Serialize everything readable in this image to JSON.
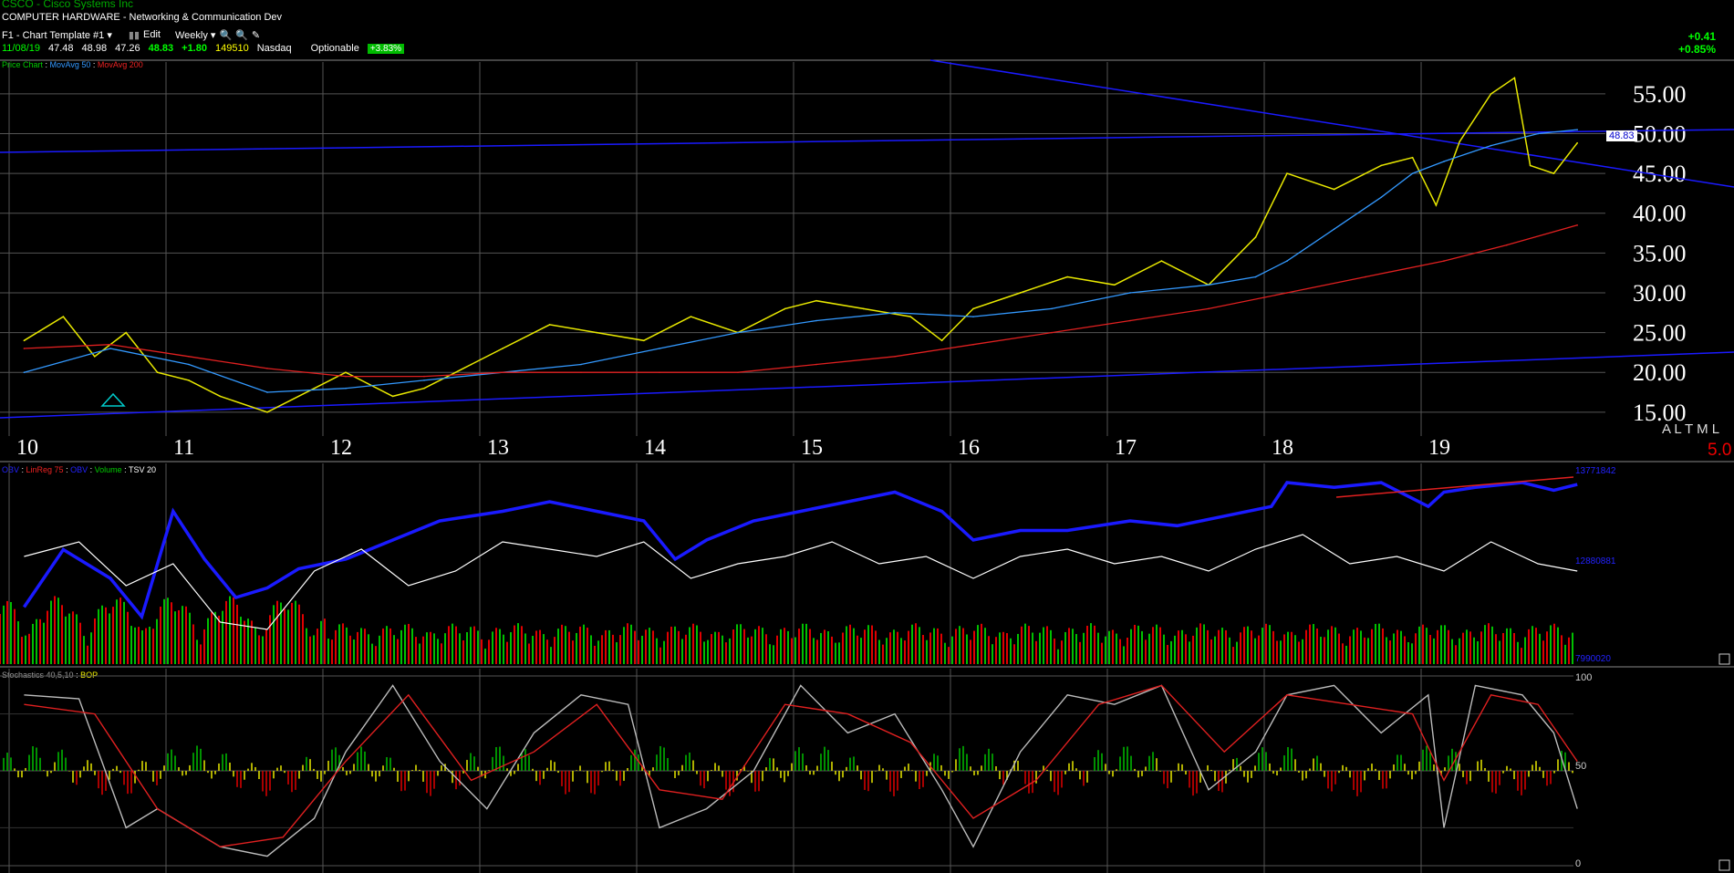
{
  "header": {
    "symbol_line": "CSCO - Cisco Systems Inc",
    "industry": "COMPUTER HARDWARE - Networking & Communication Dev",
    "template": "F1 - Chart Template #1",
    "edit_label": "Edit",
    "period": "Weekly",
    "optionable": "Optionable",
    "change_pct_badge": "+3.83%"
  },
  "quote": {
    "date": "11/08/19",
    "open": "47.48",
    "high": "48.98",
    "low": "47.26",
    "close": "48.83",
    "change": "+1.80",
    "volume": "149510",
    "exchange": "Nasdaq"
  },
  "day_change": {
    "abs": "+0.41",
    "pct": "+0.85%"
  },
  "panel_legends": {
    "price": {
      "label": "Price Chart",
      "ma50": "MovAvg 50",
      "ma200": "MovAvg 200"
    },
    "volume": {
      "obv": "OBV",
      "linreg": "LinReg 75",
      "obv2": "OBV",
      "volume": "Volume",
      "tsv": "TSV 20"
    },
    "stoch": {
      "stoch": "Stochastics 40,5,10",
      "bop": "BOP"
    }
  },
  "side_labels": {
    "al_tml": "A L T M L",
    "scale": "5.0",
    "last_price_tag": "48.83",
    "obv_top": "13771842",
    "obv_mid": "12880881",
    "vol_bottom": "7990020",
    "stoch_100": "100",
    "stoch_50": "50",
    "stoch_0": "0"
  },
  "colors": {
    "price": "#e8e800",
    "price_up": "#00c000",
    "price_down": "#e00000",
    "ma50": "#3399ff",
    "ma200": "#e02020",
    "trendline": "#1a1aff",
    "obv": "#1a1aff",
    "tsv": "#ffffff",
    "grid": "#555555"
  },
  "chart_data": [
    {
      "type": "line",
      "title": "Price Chart",
      "x": [
        "10",
        "11",
        "12",
        "13",
        "14",
        "15",
        "16",
        "17",
        "18",
        "19"
      ],
      "y_ticks": [
        "55.00",
        "50.00",
        "45.00",
        "40.00",
        "35.00",
        "30.00",
        "25.00",
        "20.00",
        "15.00"
      ],
      "ylim": [
        12,
        59
      ],
      "series": [
        {
          "name": "Price",
          "x": [
            2009.95,
            2010.2,
            2010.4,
            2010.6,
            2010.8,
            2011.0,
            2011.2,
            2011.5,
            2011.8,
            2012.0,
            2012.3,
            2012.5,
            2012.8,
            2013.0,
            2013.3,
            2013.6,
            2013.9,
            2014.2,
            2014.5,
            2014.8,
            2015.0,
            2015.3,
            2015.6,
            2015.8,
            2016.0,
            2016.3,
            2016.6,
            2016.9,
            2017.2,
            2017.5,
            2017.8,
            2018.0,
            2018.3,
            2018.6,
            2018.8,
            2018.95,
            2019.1,
            2019.3,
            2019.45,
            2019.55,
            2019.7,
            2019.85
          ],
          "values": [
            24,
            27,
            22,
            25,
            20,
            19,
            17,
            15,
            18,
            20,
            17,
            18,
            21,
            23,
            26,
            25,
            24,
            27,
            25,
            28,
            29,
            28,
            27,
            24,
            28,
            30,
            32,
            31,
            34,
            31,
            37,
            45,
            43,
            46,
            47,
            41,
            49,
            55,
            57,
            46,
            45,
            48.83
          ]
        },
        {
          "name": "MovAvg 50",
          "x": [
            2009.95,
            2010.5,
            2011.0,
            2011.5,
            2012.0,
            2012.5,
            2013.0,
            2013.5,
            2014.0,
            2014.5,
            2015.0,
            2015.5,
            2016.0,
            2016.5,
            2017.0,
            2017.5,
            2017.8,
            2018.0,
            2018.3,
            2018.6,
            2018.8,
            2019.0,
            2019.3,
            2019.6,
            2019.85
          ],
          "values": [
            20,
            23,
            21,
            17.5,
            18,
            19,
            20,
            21,
            23,
            25,
            26.5,
            27.5,
            27,
            28,
            30,
            31,
            32,
            34,
            38,
            42,
            45,
            46.5,
            48.5,
            50,
            50.5
          ]
        },
        {
          "name": "MovAvg 200",
          "x": [
            2009.95,
            2010.5,
            2011.0,
            2011.5,
            2012.0,
            2012.5,
            2013.0,
            2013.5,
            2014.0,
            2014.5,
            2015.0,
            2015.5,
            2016.0,
            2016.5,
            2017.0,
            2017.5,
            2018.0,
            2018.5,
            2019.0,
            2019.4,
            2019.85
          ],
          "values": [
            23,
            23.5,
            22,
            20.5,
            19.5,
            19.5,
            20,
            20,
            20,
            20,
            21,
            22,
            23.5,
            25,
            26.5,
            28,
            30,
            32,
            34,
            36,
            38.5
          ]
        }
      ],
      "annotations": [
        "A L T M L",
        "5.0",
        "48.83"
      ]
    },
    {
      "type": "line",
      "title": "OBV / LinReg 75 / Volume / TSV 20",
      "x": [
        "10",
        "11",
        "12",
        "13",
        "14",
        "15",
        "16",
        "17",
        "18",
        "19"
      ],
      "series": [
        {
          "name": "OBV",
          "x": [
            2009.95,
            2010.2,
            2010.5,
            2010.7,
            2010.9,
            2011.1,
            2011.3,
            2011.5,
            2011.7,
            2012.0,
            2012.3,
            2012.6,
            2013.0,
            2013.3,
            2013.6,
            2013.9,
            2014.1,
            2014.3,
            2014.6,
            2014.9,
            2015.2,
            2015.5,
            2015.8,
            2016.0,
            2016.3,
            2016.6,
            2017.0,
            2017.3,
            2017.6,
            2017.9,
            2018.0,
            2018.3,
            2018.6,
            2018.9,
            2019.0,
            2019.2,
            2019.5,
            2019.7,
            2019.85
          ],
          "values": [
            12.5,
            13.1,
            12.8,
            12.4,
            13.5,
            13.0,
            12.6,
            12.7,
            12.9,
            13.0,
            13.2,
            13.4,
            13.5,
            13.6,
            13.5,
            13.4,
            13.0,
            13.2,
            13.4,
            13.5,
            13.6,
            13.7,
            13.5,
            13.2,
            13.3,
            13.3,
            13.4,
            13.35,
            13.45,
            13.55,
            13.8,
            13.75,
            13.8,
            13.55,
            13.7,
            13.75,
            13.8,
            13.72,
            13.78
          ]
        },
        {
          "name": "TSV 20",
          "x": [
            2009.95,
            2010.3,
            2010.6,
            2010.9,
            2011.2,
            2011.5,
            2011.8,
            2012.1,
            2012.4,
            2012.7,
            2013.0,
            2013.3,
            2013.6,
            2013.9,
            2014.2,
            2014.5,
            2014.8,
            2015.1,
            2015.4,
            2015.7,
            2016.0,
            2016.3,
            2016.6,
            2016.9,
            2017.2,
            2017.5,
            2017.8,
            2018.1,
            2018.4,
            2018.7,
            2019.0,
            2019.3,
            2019.6,
            2019.85
          ],
          "values": [
            0.55,
            0.65,
            0.35,
            0.5,
            0.1,
            0.05,
            0.45,
            0.6,
            0.35,
            0.45,
            0.65,
            0.6,
            0.55,
            0.65,
            0.4,
            0.5,
            0.55,
            0.65,
            0.5,
            0.55,
            0.4,
            0.55,
            0.6,
            0.5,
            0.55,
            0.45,
            0.6,
            0.7,
            0.5,
            0.55,
            0.45,
            0.65,
            0.5,
            0.45
          ]
        }
      ],
      "annotations": [
        "13771842",
        "12880881",
        "7990020"
      ]
    },
    {
      "type": "line",
      "title": "Stochastics 40,5,10 / BOP",
      "x": [
        "10",
        "11",
        "12",
        "13",
        "14",
        "15",
        "16",
        "17",
        "18",
        "19"
      ],
      "ylim": [
        0,
        100
      ],
      "y_ticks": [
        "100",
        "50",
        "0"
      ],
      "series": [
        {
          "name": "Stochastics",
          "x": [
            2009.95,
            2010.3,
            2010.6,
            2010.8,
            2011.2,
            2011.5,
            2011.8,
            2012.0,
            2012.3,
            2012.6,
            2012.9,
            2013.2,
            2013.5,
            2013.8,
            2014.0,
            2014.3,
            2014.6,
            2014.9,
            2015.2,
            2015.5,
            2015.8,
            2016.0,
            2016.3,
            2016.6,
            2016.9,
            2017.2,
            2017.5,
            2017.8,
            2018.0,
            2018.3,
            2018.6,
            2018.9,
            2019.0,
            2019.2,
            2019.5,
            2019.7,
            2019.85
          ],
          "values": [
            90,
            88,
            20,
            30,
            10,
            5,
            25,
            60,
            95,
            55,
            30,
            70,
            90,
            85,
            20,
            30,
            50,
            95,
            70,
            80,
            40,
            10,
            60,
            90,
            85,
            95,
            40,
            60,
            90,
            95,
            70,
            90,
            20,
            95,
            90,
            70,
            30
          ]
        },
        {
          "name": "Signal",
          "x": [
            2009.95,
            2010.4,
            2010.8,
            2011.2,
            2011.6,
            2012.0,
            2012.4,
            2012.8,
            2013.2,
            2013.6,
            2014.0,
            2014.4,
            2014.8,
            2015.2,
            2015.6,
            2016.0,
            2016.4,
            2016.8,
            2017.2,
            2017.6,
            2018.0,
            2018.4,
            2018.8,
            2019.0,
            2019.3,
            2019.6,
            2019.85
          ],
          "values": [
            85,
            80,
            30,
            10,
            15,
            55,
            90,
            45,
            60,
            85,
            40,
            35,
            85,
            80,
            65,
            25,
            45,
            85,
            95,
            60,
            90,
            85,
            80,
            45,
            90,
            85,
            55
          ]
        }
      ]
    }
  ]
}
